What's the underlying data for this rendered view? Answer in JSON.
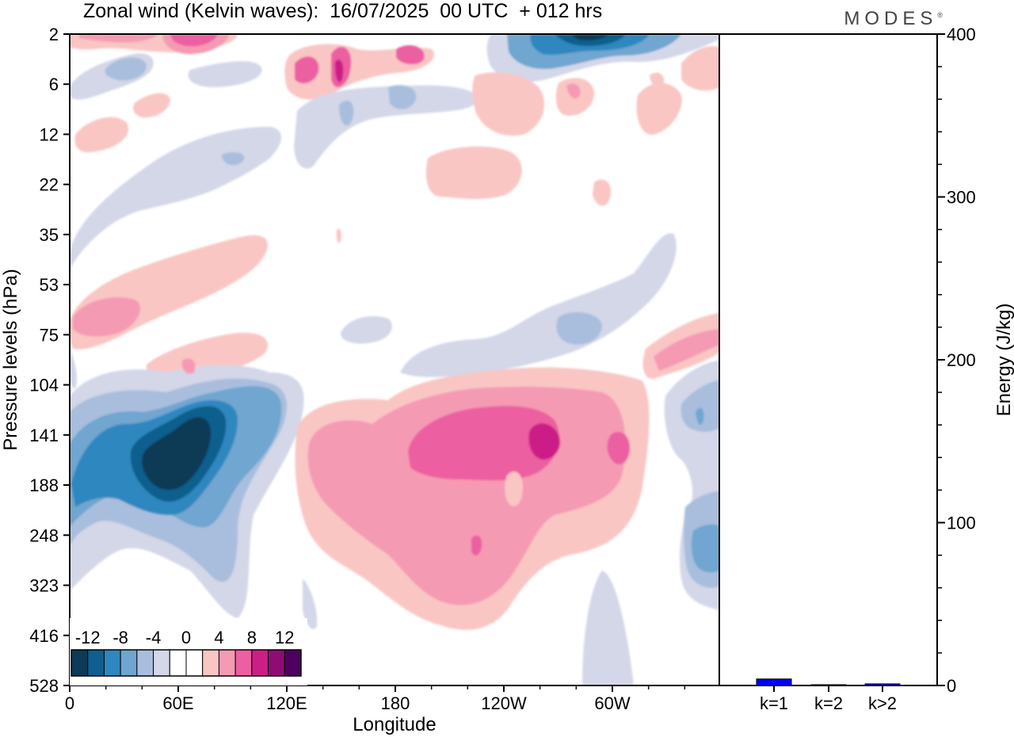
{
  "header": {
    "title": "Zonal wind (Kelvin waves):  16/07/2025  00 UTC  + 012 hrs",
    "brand": "MODES",
    "brand_mark": "®"
  },
  "chart_data": [
    {
      "type": "heatmap",
      "title": "Zonal wind (Kelvin waves):  16/07/2025  00 UTC  + 012 hrs",
      "xlabel": "Longitude",
      "ylabel": "Pressure levels (hPa)",
      "x_ticks": [
        "0",
        "60E",
        "120E",
        "180",
        "120W",
        "60W"
      ],
      "y_ticks": [
        "2",
        "6",
        "12",
        "22",
        "35",
        "53",
        "75",
        "104",
        "141",
        "188",
        "248",
        "323",
        "416",
        "528"
      ],
      "colorbar": {
        "levels": [
          -12,
          -8,
          -4,
          0,
          4,
          8,
          12
        ],
        "level_labels": [
          "-12",
          "-8",
          "-4",
          "0",
          "4",
          "8",
          "12"
        ],
        "colors": [
          "#0c3a57",
          "#0f5f8e",
          "#2f87bf",
          "#6fa6cf",
          "#a9bedd",
          "#d3d7e8",
          "#ffffff",
          "#ffffff",
          "#f9c6c4",
          "#f59ab3",
          "#ec5fa0",
          "#cc1f86",
          "#8e0c74",
          "#4f005f"
        ]
      },
      "features": [
        {
          "label": "easterly maximum",
          "lon_range": [
            "10E",
            "110E"
          ],
          "level_range": [
            104,
            300
          ],
          "peak": -14
        },
        {
          "label": "westerly maximum",
          "lon_range": [
            "135E",
            "70W"
          ],
          "level_range": [
            104,
            420
          ],
          "peak": 12
        },
        {
          "label": "upper stratosphere easterly",
          "lon_range": [
            "120W",
            "70W"
          ],
          "level_range": [
            2,
            6
          ],
          "peak": -14
        },
        {
          "label": "upper stratosphere westerly",
          "lon_range": [
            "0",
            "60E"
          ],
          "level_range": [
            2,
            4
          ],
          "peak": 10
        }
      ]
    },
    {
      "type": "bar",
      "ylabel": "Energy (J/kg)",
      "categories": [
        "k=1",
        "k=2",
        "k>2"
      ],
      "values": [
        4,
        0.5,
        1
      ],
      "ylim": [
        0,
        400
      ],
      "y_ticks": [
        "0",
        "100",
        "200",
        "300",
        "400"
      ],
      "bar_colors": [
        "#0000ff",
        "#0000ff",
        "#0000ff"
      ]
    }
  ]
}
